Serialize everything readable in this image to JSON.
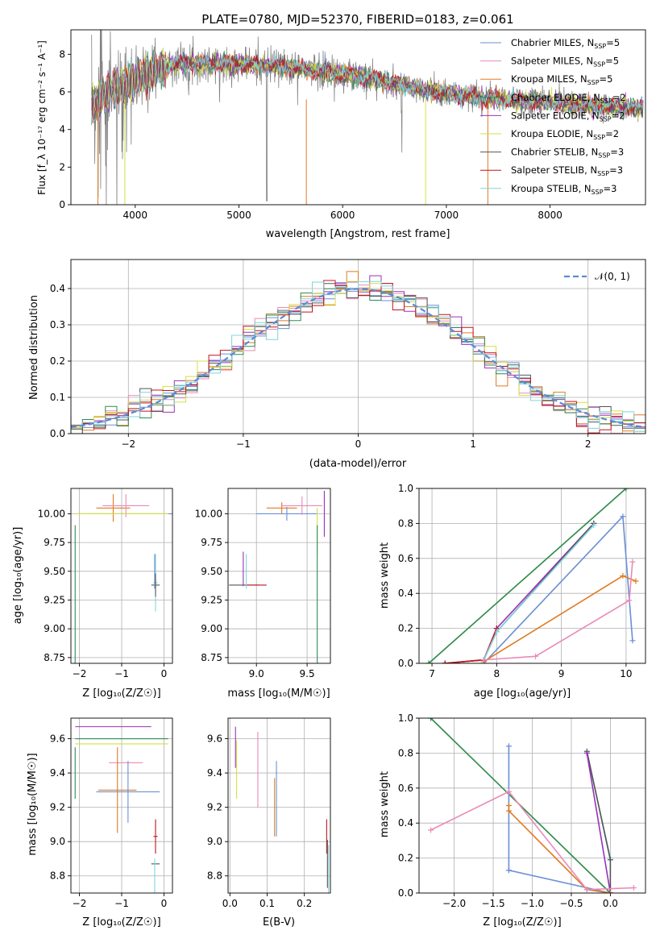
{
  "colors": {
    "chabrier_miles": "#6a8fd6",
    "salpeter_miles": "#e98ab8",
    "kroupa_miles": "#e07a22",
    "chabrier_elodie": "#2e8b57",
    "salpeter_elodie": "#9932b8",
    "kroupa_elodie": "#d4e040",
    "chabrier_stelib": "#555555",
    "salpeter_stelib": "#c0141c",
    "kroupa_stelib": "#80d4dc",
    "data_spectrum": "#808080",
    "normal": "#5b8ad8"
  },
  "chart_data": [
    {
      "id": "spectrum",
      "type": "line",
      "title": "PLATE=0780, MJD=52370, FIBERID=0183, z=0.061",
      "xlabel": "wavelength [Angstrom, rest frame]",
      "ylabel": "Flux [f_λ 10⁻¹⁷ erg cm⁻² s⁻¹ A⁻¹]",
      "xlim": [
        3380,
        8920
      ],
      "ylim": [
        0,
        9.3
      ],
      "x_ticks": [
        "4000",
        "5000",
        "6000",
        "7000",
        "8000"
      ],
      "y_ticks": [
        "0",
        "2",
        "4",
        "6",
        "8"
      ],
      "grid": false,
      "legend_position": "top-right",
      "legend": [
        "Chabrier MILES, N_SSP=5",
        "Salpeter MILES, N_SSP=5",
        "Kroupa MILES, N_SSP=5",
        "Chabrier ELODIE, N_SSP=2",
        "Salpeter ELODIE, N_SSP=2",
        "Kroupa ELODIE, N_SSP=2",
        "Chabrier STELIB, N_SSP=3",
        "Salpeter STELIB, N_SSP=3",
        "Kroupa STELIB, N_SSP=3"
      ],
      "continuum_model": [
        [
          3580,
          5.3
        ],
        [
          3700,
          5.9
        ],
        [
          3900,
          6.4
        ],
        [
          4100,
          7.0
        ],
        [
          4400,
          7.5
        ],
        [
          4800,
          7.5
        ],
        [
          5300,
          7.4
        ],
        [
          5800,
          7.1
        ],
        [
          6300,
          6.7
        ],
        [
          6800,
          6.1
        ],
        [
          7300,
          5.7
        ],
        [
          7800,
          5.5
        ],
        [
          8300,
          5.3
        ],
        [
          8900,
          5.1
        ]
      ]
    },
    {
      "id": "residuals",
      "type": "line",
      "xlabel": "(data-model)/error",
      "ylabel": "Normed distribution",
      "xlim": [
        -2.5,
        2.5
      ],
      "ylim": [
        0,
        0.48
      ],
      "x_ticks": [
        "−2",
        "−1",
        "0",
        "1",
        "2"
      ],
      "y_ticks": [
        "0.0",
        "0.1",
        "0.2",
        "0.3",
        "0.4"
      ],
      "grid": true,
      "legend_position": "top-right",
      "legend": [
        "𝒩(0, 1)"
      ],
      "bin_width": 0.1
    },
    {
      "id": "age_vs_Z",
      "type": "scatter",
      "xlabel": "Z [log₁₀(Z/Z☉)]",
      "ylabel": "age  [log₁₀(age/yr)]",
      "xlim": [
        -2.2,
        0.2
      ],
      "ylim": [
        8.7,
        10.22
      ],
      "x_ticks": [
        "−2",
        "−1",
        "0"
      ],
      "y_ticks": [
        "8.75",
        "9.00",
        "9.25",
        "9.50",
        "9.75",
        "10.00"
      ],
      "grid": true,
      "points": [
        {
          "model": "chabrier_miles",
          "x": -0.85,
          "y": 10.0,
          "xerr": 1.2,
          "yerr": 0.0
        },
        {
          "model": "kroupa_miles",
          "x": -1.2,
          "y": 10.05,
          "xerr": 0.4,
          "yerr": 0.12
        },
        {
          "model": "salpeter_miles",
          "x": -0.9,
          "y": 10.07,
          "xerr": 0.55,
          "yerr": 0.1
        },
        {
          "model": "kroupa_elodie",
          "x": -1.0,
          "y": 10.0,
          "xerr": 1.1,
          "yerr": 0.0
        },
        {
          "model": "chabrier_elodie",
          "x": -2.1,
          "y": 9.3,
          "xerr": 0.0,
          "yerr": 0.6
        },
        {
          "model": "kroupa_stelib",
          "x": -0.2,
          "y": 9.4,
          "xerr": 0.05,
          "yerr": 0.25
        },
        {
          "model": "chabrier_stelib",
          "x": -0.2,
          "y": 9.38,
          "xerr": 0.1,
          "yerr": 0.1
        },
        {
          "model": "chabrier_miles",
          "x": -0.22,
          "y": 9.5,
          "xerr": 0.0,
          "yerr": 0.15
        }
      ]
    },
    {
      "id": "age_vs_mass",
      "type": "scatter",
      "xlabel": "mass [log₁₀(M/M☉)]",
      "ylabel": "",
      "xlim": [
        8.72,
        9.73
      ],
      "ylim": [
        8.7,
        10.22
      ],
      "x_ticks": [
        "9.0",
        "9.5"
      ],
      "y_ticks": [
        "8.75",
        "9.00",
        "9.25",
        "9.50",
        "9.75",
        "10.00"
      ],
      "grid": true,
      "points": [
        {
          "model": "chabrier_miles",
          "x": 9.3,
          "y": 10.0,
          "xerr": 0.3,
          "yerr": 0.06
        },
        {
          "model": "kroupa_miles",
          "x": 9.25,
          "y": 10.05,
          "xerr": 0.15,
          "yerr": 0.05
        },
        {
          "model": "salpeter_miles",
          "x": 9.45,
          "y": 10.07,
          "xerr": 0.2,
          "yerr": 0.08
        },
        {
          "model": "salpeter_elodie",
          "x": 9.67,
          "y": 10.0,
          "xerr": 0.0,
          "yerr": 0.2
        },
        {
          "model": "kroupa_elodie",
          "x": 9.6,
          "y": 9.85,
          "xerr": 0.0,
          "yerr": 0.2
        },
        {
          "model": "chabrier_elodie",
          "x": 9.6,
          "y": 9.3,
          "xerr": 0.0,
          "yerr": 0.6
        },
        {
          "model": "chabrier_stelib",
          "x": 8.88,
          "y": 9.38,
          "xerr": 0.15,
          "yerr": 0.0
        },
        {
          "model": "salpeter_stelib",
          "x": 9.0,
          "y": 9.38,
          "xerr": 0.1,
          "yerr": 0.0
        },
        {
          "model": "salpeter_elodie",
          "x": 8.87,
          "y": 9.52,
          "xerr": 0.0,
          "yerr": 0.15
        },
        {
          "model": "kroupa_stelib",
          "x": 8.9,
          "y": 9.5,
          "xerr": 0.0,
          "yerr": 0.15
        }
      ]
    },
    {
      "id": "weight_vs_age",
      "type": "line",
      "xlabel": "age  [log₁₀(age/yr)]",
      "ylabel": "mass weight",
      "xlim": [
        6.8,
        10.3
      ],
      "ylim": [
        0,
        1.0
      ],
      "x_ticks": [
        "7",
        "8",
        "9",
        "10"
      ],
      "y_ticks": [
        "0.0",
        "0.2",
        "0.4",
        "0.6",
        "0.8",
        "1.0"
      ],
      "grid": true,
      "series": [
        {
          "model": "kroupa_elodie",
          "x": [
            6.95,
            10.0
          ],
          "y": [
            0.0,
            1.0
          ]
        },
        {
          "model": "chabrier_elodie",
          "x": [
            6.95,
            10.0
          ],
          "y": [
            0.0,
            1.0
          ]
        },
        {
          "model": "salpeter_elodie",
          "x": [
            7.2,
            7.8,
            8.0,
            9.5
          ],
          "y": [
            0.0,
            0.02,
            0.2,
            0.8
          ]
        },
        {
          "model": "chabrier_stelib",
          "x": [
            7.2,
            7.8,
            8.0,
            9.5
          ],
          "y": [
            0.0,
            0.02,
            0.18,
            0.8
          ]
        },
        {
          "model": "salpeter_stelib",
          "x": [
            7.2,
            7.8,
            8.0
          ],
          "y": [
            0.0,
            0.02,
            0.2
          ]
        },
        {
          "model": "kroupa_stelib",
          "x": [
            7.8,
            8.0,
            9.5
          ],
          "y": [
            0.02,
            0.18,
            0.79
          ]
        },
        {
          "model": "chabrier_miles",
          "x": [
            7.8,
            9.95,
            10.1
          ],
          "y": [
            0.0,
            0.84,
            0.13
          ]
        },
        {
          "model": "kroupa_miles",
          "x": [
            7.8,
            9.95,
            10.15
          ],
          "y": [
            0.01,
            0.5,
            0.47
          ]
        },
        {
          "model": "salpeter_miles",
          "x": [
            7.8,
            8.6,
            10.05,
            10.1
          ],
          "y": [
            0.02,
            0.04,
            0.36,
            0.58
          ]
        }
      ]
    },
    {
      "id": "mass_vs_Z",
      "type": "scatter",
      "xlabel": "Z [log₁₀(Z/Z☉)]",
      "ylabel": "mass [log₁₀(M/M☉)]",
      "xlim": [
        -2.2,
        0.2
      ],
      "ylim": [
        8.7,
        9.72
      ],
      "x_ticks": [
        "−2",
        "−1",
        "0"
      ],
      "y_ticks": [
        "8.8",
        "9.0",
        "9.2",
        "9.4",
        "9.6"
      ],
      "grid": true,
      "points": [
        {
          "model": "salpeter_elodie",
          "x": -1.2,
          "y": 9.67,
          "xerr": 0.9,
          "yerr": 0.0
        },
        {
          "model": "chabrier_elodie",
          "x": -1.0,
          "y": 9.6,
          "xerr": 1.1,
          "yerr": 0.0
        },
        {
          "model": "kroupa_elodie",
          "x": -1.0,
          "y": 9.57,
          "xerr": 1.1,
          "yerr": 0.0
        },
        {
          "model": "salpeter_miles",
          "x": -0.9,
          "y": 9.46,
          "xerr": 0.4,
          "yerr": 0.0
        },
        {
          "model": "kroupa_miles",
          "x": -1.1,
          "y": 9.3,
          "xerr": 0.45,
          "yerr": 0.25
        },
        {
          "model": "chabrier_miles",
          "x": -0.85,
          "y": 9.29,
          "xerr": 0.75,
          "yerr": 0.18
        },
        {
          "model": "salpeter_stelib",
          "x": -0.2,
          "y": 9.03,
          "xerr": 0.05,
          "yerr": 0.1
        },
        {
          "model": "chabrier_stelib",
          "x": -0.2,
          "y": 8.87,
          "xerr": 0.1,
          "yerr": 0.0
        },
        {
          "model": "kroupa_stelib",
          "x": -0.22,
          "y": 8.8,
          "xerr": 0.0,
          "yerr": 0.1
        },
        {
          "model": "chabrier_elodie",
          "x": -2.1,
          "y": 9.4,
          "xerr": 0.0,
          "yerr": 0.15
        }
      ]
    },
    {
      "id": "mass_vs_ebv",
      "type": "scatter",
      "xlabel": "E(B-V)",
      "ylabel": "",
      "xlim": [
        -0.005,
        0.27
      ],
      "ylim": [
        8.7,
        9.72
      ],
      "x_ticks": [
        "0.0",
        "0.1",
        "0.2"
      ],
      "y_ticks": [
        "8.8",
        "9.0",
        "9.2",
        "9.4",
        "9.6"
      ],
      "grid": true,
      "points": [
        {
          "model": "salpeter_elodie",
          "x": 0.015,
          "y": 9.55,
          "xerr": 0.0,
          "yerr": 0.12
        },
        {
          "model": "kroupa_elodie",
          "x": 0.018,
          "y": 9.42,
          "xerr": 0.0,
          "yerr": 0.17
        },
        {
          "model": "salpeter_miles",
          "x": 0.075,
          "y": 9.42,
          "xerr": 0.0,
          "yerr": 0.22
        },
        {
          "model": "kroupa_miles",
          "x": 0.12,
          "y": 9.2,
          "xerr": 0.0,
          "yerr": 0.17
        },
        {
          "model": "chabrier_miles",
          "x": 0.125,
          "y": 9.25,
          "xerr": 0.0,
          "yerr": 0.22
        },
        {
          "model": "salpeter_stelib",
          "x": 0.26,
          "y": 9.03,
          "xerr": 0.0,
          "yerr": 0.1
        },
        {
          "model": "chabrier_stelib",
          "x": 0.262,
          "y": 8.87,
          "xerr": 0.0,
          "yerr": 0.14
        },
        {
          "model": "kroupa_stelib",
          "x": 0.265,
          "y": 8.84,
          "xerr": 0.0,
          "yerr": 0.14
        }
      ]
    },
    {
      "id": "weight_vs_Z",
      "type": "line",
      "xlabel": "Z [log₁₀(Z/Z☉)]",
      "ylabel": "mass weight",
      "xlim": [
        -2.45,
        0.45
      ],
      "ylim": [
        0,
        1.0
      ],
      "x_ticks": [
        "−2.0",
        "−1.5",
        "−1.0",
        "−0.5",
        "0.0"
      ],
      "y_ticks": [
        "0.0",
        "0.2",
        "0.4",
        "0.6",
        "0.8",
        "1.0"
      ],
      "grid": true,
      "series": [
        {
          "model": "kroupa_elodie",
          "x": [
            -2.3,
            0.0
          ],
          "y": [
            1.0,
            0.0
          ]
        },
        {
          "model": "chabrier_elodie",
          "x": [
            -2.3,
            0.0
          ],
          "y": [
            1.0,
            0.0
          ]
        },
        {
          "model": "kroupa_stelib",
          "x": [
            -0.3,
            0.0
          ],
          "y": [
            0.8,
            0.2
          ]
        },
        {
          "model": "chabrier_stelib",
          "x": [
            -0.3,
            0.0,
            0.0
          ],
          "y": [
            0.81,
            0.19,
            0.0
          ]
        },
        {
          "model": "salpeter_elodie",
          "x": [
            -0.3,
            0.0
          ],
          "y": [
            0.8,
            0.0
          ]
        },
        {
          "model": "chabrier_miles",
          "x": [
            -1.3,
            -1.3,
            -1.3,
            0.0,
            0.0
          ],
          "y": [
            0.84,
            0.13,
            0.13,
            0.0,
            0.0
          ]
        },
        {
          "model": "kroupa_miles",
          "x": [
            -1.3,
            -1.3,
            -0.3,
            0.0
          ],
          "y": [
            0.5,
            0.47,
            0.02,
            0.0
          ]
        },
        {
          "model": "salpeter_miles",
          "x": [
            -2.3,
            -1.3,
            -0.3,
            0.3
          ],
          "y": [
            0.36,
            0.58,
            0.02,
            0.03
          ]
        }
      ]
    }
  ]
}
